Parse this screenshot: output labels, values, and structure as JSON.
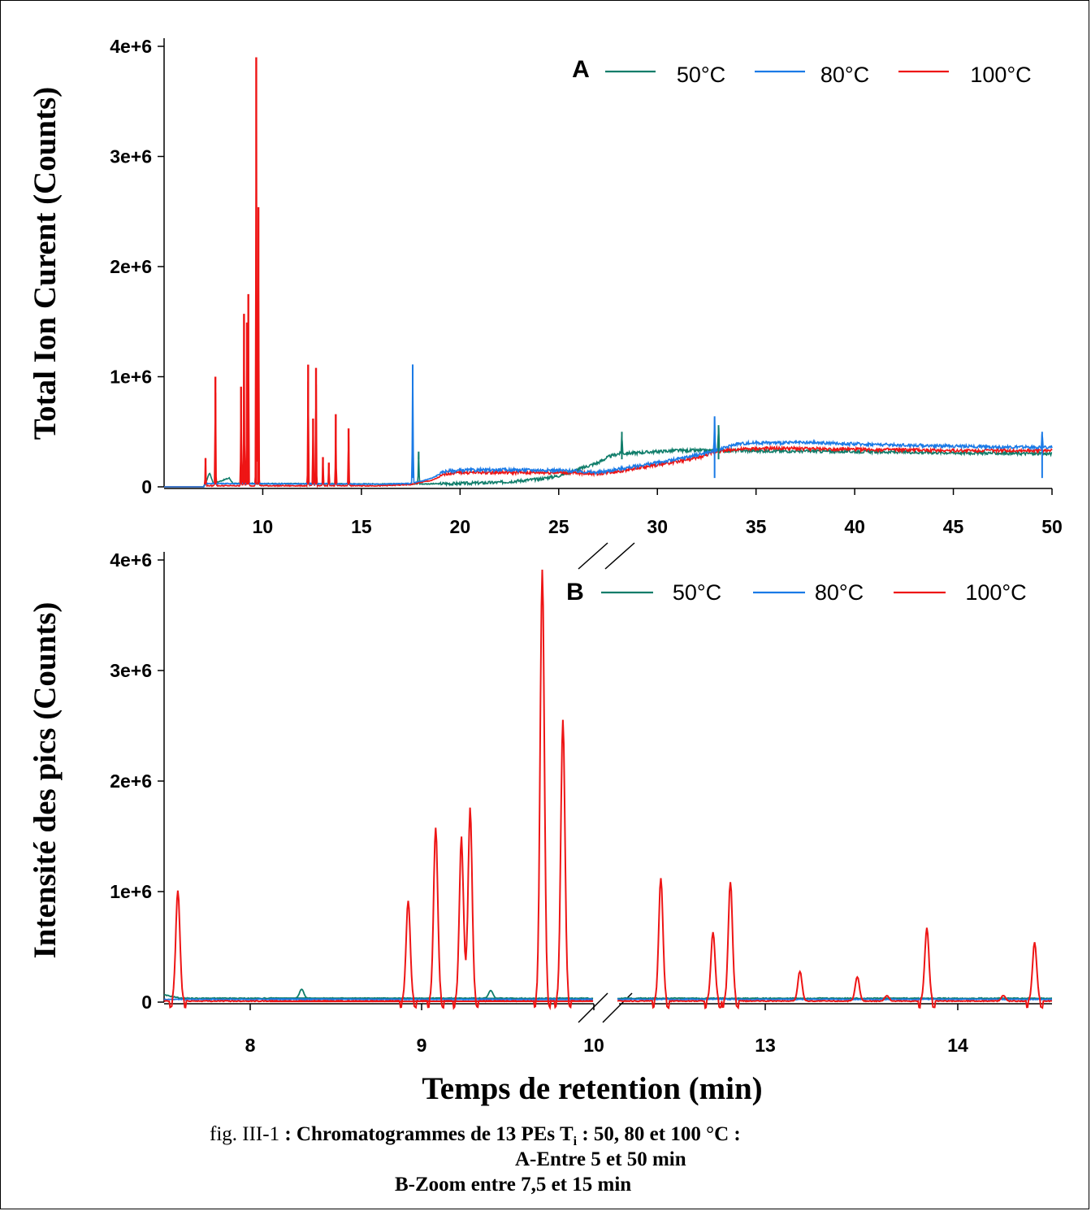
{
  "chart_data": [
    {
      "type": "line",
      "panel_label": "A",
      "ylabel": "Total Ion Curent (Counts)",
      "xlim": [
        5,
        50
      ],
      "ylim": [
        0,
        4000000
      ],
      "x_ticks": [
        "10",
        "15",
        "20",
        "25",
        "30",
        "35",
        "40",
        "45",
        "50"
      ],
      "x_tick_values": [
        10,
        15,
        20,
        25,
        30,
        35,
        40,
        45,
        50
      ],
      "y_ticks": [
        "0",
        "1e+6",
        "2e+6",
        "3e+6",
        "4e+6"
      ],
      "y_tick_values": [
        0,
        1000000,
        2000000,
        3000000,
        4000000
      ],
      "legend_position": "top-right",
      "series": [
        {
          "name": "50°C",
          "color": "#0f7d6a",
          "baseline": [
            [
              5,
              0
            ],
            [
              7,
              0
            ],
            [
              7.1,
              30000
            ],
            [
              7.3,
              130000
            ],
            [
              7.5,
              30000
            ],
            [
              8.3,
              80000
            ],
            [
              8.5,
              30000
            ],
            [
              17.5,
              25000
            ],
            [
              20,
              30000
            ],
            [
              22,
              40000
            ],
            [
              24,
              70000
            ],
            [
              25,
              100000
            ],
            [
              26,
              160000
            ],
            [
              27,
              220000
            ],
            [
              27.5,
              270000
            ],
            [
              28,
              300000
            ],
            [
              29,
              310000
            ],
            [
              30,
              320000
            ],
            [
              31,
              330000
            ],
            [
              32,
              330000
            ],
            [
              33,
              330000
            ],
            [
              40,
              320000
            ],
            [
              45,
              310000
            ],
            [
              50,
              300000
            ]
          ],
          "peaks": [
            [
              28.2,
              500000
            ],
            [
              17.9,
              320000
            ],
            [
              33.1,
              560000
            ]
          ]
        },
        {
          "name": "80°C",
          "color": "#1a7ae6",
          "baseline": [
            [
              5,
              0
            ],
            [
              7,
              0
            ],
            [
              7.1,
              30000
            ],
            [
              16,
              25000
            ],
            [
              17.5,
              30000
            ],
            [
              18,
              50000
            ],
            [
              18.6,
              80000
            ],
            [
              19.2,
              140000
            ],
            [
              20,
              150000
            ],
            [
              22,
              155000
            ],
            [
              25,
              150000
            ],
            [
              27,
              130000
            ],
            [
              28,
              160000
            ],
            [
              29,
              190000
            ],
            [
              30,
              220000
            ],
            [
              31,
              250000
            ],
            [
              32,
              290000
            ],
            [
              33,
              330000
            ],
            [
              34,
              390000
            ],
            [
              35,
              400000
            ],
            [
              38,
              400000
            ],
            [
              42,
              380000
            ],
            [
              45,
              370000
            ],
            [
              48,
              360000
            ],
            [
              49.4,
              360000
            ],
            [
              50,
              360000
            ]
          ],
          "peaks": [
            [
              17.6,
              1110000
            ],
            [
              32.9,
              640000
            ],
            [
              49.5,
              500000
            ]
          ]
        },
        {
          "name": "100°C",
          "color": "#ee1515",
          "baseline": [
            [
              5,
              0
            ],
            [
              7,
              0
            ],
            [
              7.1,
              10000
            ],
            [
              16,
              10000
            ],
            [
              17.5,
              20000
            ],
            [
              18,
              40000
            ],
            [
              18.6,
              60000
            ],
            [
              19.3,
              120000
            ],
            [
              20,
              130000
            ],
            [
              22,
              130000
            ],
            [
              25,
              130000
            ],
            [
              27,
              120000
            ],
            [
              28,
              140000
            ],
            [
              29,
              170000
            ],
            [
              30,
              200000
            ],
            [
              31,
              230000
            ],
            [
              32,
              260000
            ],
            [
              33,
              320000
            ],
            [
              34,
              340000
            ],
            [
              36,
              350000
            ],
            [
              40,
              340000
            ],
            [
              45,
              330000
            ],
            [
              50,
              330000
            ]
          ],
          "peaks": [
            [
              7.1,
              260000
            ],
            [
              7.6,
              1000000
            ],
            [
              8.9,
              910000
            ],
            [
              9.05,
              1570000
            ],
            [
              9.2,
              1490000
            ],
            [
              9.27,
              1750000
            ],
            [
              9.67,
              3900000
            ],
            [
              9.78,
              2540000
            ],
            [
              12.3,
              1110000
            ],
            [
              12.55,
              620000
            ],
            [
              12.7,
              1080000
            ],
            [
              13.05,
              270000
            ],
            [
              13.35,
              220000
            ],
            [
              13.7,
              660000
            ],
            [
              14.35,
              530000
            ]
          ]
        }
      ]
    },
    {
      "type": "line",
      "panel_label": "B",
      "ylabel": "Intensité des pics (Counts)",
      "xlabel": "Temps de retention (min)",
      "axis_break_between": [
        10,
        12
      ],
      "ylim": [
        0,
        4000000
      ],
      "x_ticks": [
        "8",
        "9",
        "10",
        "13",
        "14"
      ],
      "x_tick_values": [
        8,
        9,
        10,
        13,
        14
      ],
      "y_ticks": [
        "0",
        "1e+6",
        "2e+6",
        "3e+6",
        "4e+6"
      ],
      "y_tick_values": [
        0,
        1000000,
        2000000,
        3000000,
        4000000
      ],
      "legend_position": "top-right",
      "series": [
        {
          "name": "50°C",
          "color": "#0f7d6a",
          "peaks": [
            [
              8.3,
              80000
            ],
            [
              9.4,
              70000
            ]
          ],
          "level": 35000
        },
        {
          "name": "80°C",
          "color": "#1a7ae6",
          "peaks": [],
          "level": 25000
        },
        {
          "name": "100°C",
          "color": "#ee1515",
          "level": 10000,
          "peaks": [
            [
              7.58,
              1000000
            ],
            [
              8.92,
              910000
            ],
            [
              9.08,
              1570000
            ],
            [
              9.23,
              1490000
            ],
            [
              9.28,
              1750000
            ],
            [
              9.7,
              3900000
            ],
            [
              9.82,
              2540000
            ],
            [
              12.25,
              1110000
            ],
            [
              12.55,
              620000
            ],
            [
              12.65,
              1080000
            ],
            [
              13.05,
              270000
            ],
            [
              13.38,
              220000
            ],
            [
              13.55,
              50000
            ],
            [
              13.78,
              660000
            ],
            [
              14.22,
              50000
            ],
            [
              14.4,
              530000
            ]
          ]
        }
      ]
    }
  ],
  "legend": {
    "A": {
      "tag": "A",
      "items": [
        "50°C",
        "80°C",
        "100°C"
      ]
    },
    "B": {
      "tag": "B",
      "items": [
        "50°C",
        "80°C",
        "100°C"
      ]
    }
  },
  "caption": {
    "prefix": "fig. III-1",
    "title": ": Chromatogrammes de 13 PEs T",
    "subscript": "i",
    "title_end": ": 50, 80 et 100 °C :",
    "line2": "A-Entre 5 et 50 min",
    "line3": "B-Zoom entre 7,5 et 15 min"
  }
}
